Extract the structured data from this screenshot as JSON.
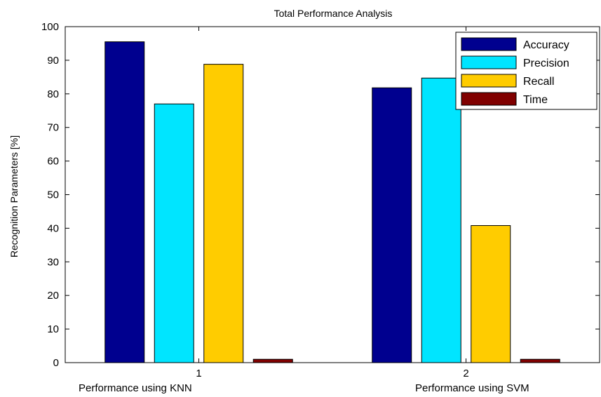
{
  "chart_data": {
    "type": "bar",
    "title": "Total Performance Analysis",
    "xlabel": "",
    "ylabel": "Recognition Parameters [%]",
    "categories": [
      "1",
      "2"
    ],
    "ylim": [
      0,
      100
    ],
    "yticks": [
      0,
      10,
      20,
      30,
      40,
      50,
      60,
      70,
      80,
      90,
      100
    ],
    "grid": false,
    "legend_position": "top-right",
    "series": [
      {
        "name": "Accuracy",
        "color": "#00008f",
        "values": [
          95.5,
          81.8
        ]
      },
      {
        "name": "Precision",
        "color": "#00e5ff",
        "values": [
          77.0,
          84.7
        ]
      },
      {
        "name": "Recall",
        "color": "#ffcc00",
        "values": [
          88.8,
          40.8
        ]
      },
      {
        "name": "Time",
        "color": "#800000",
        "values": [
          1.0,
          1.0
        ]
      }
    ]
  },
  "captions": {
    "left": "Performance using KNN",
    "right": "Performance using SVM"
  }
}
